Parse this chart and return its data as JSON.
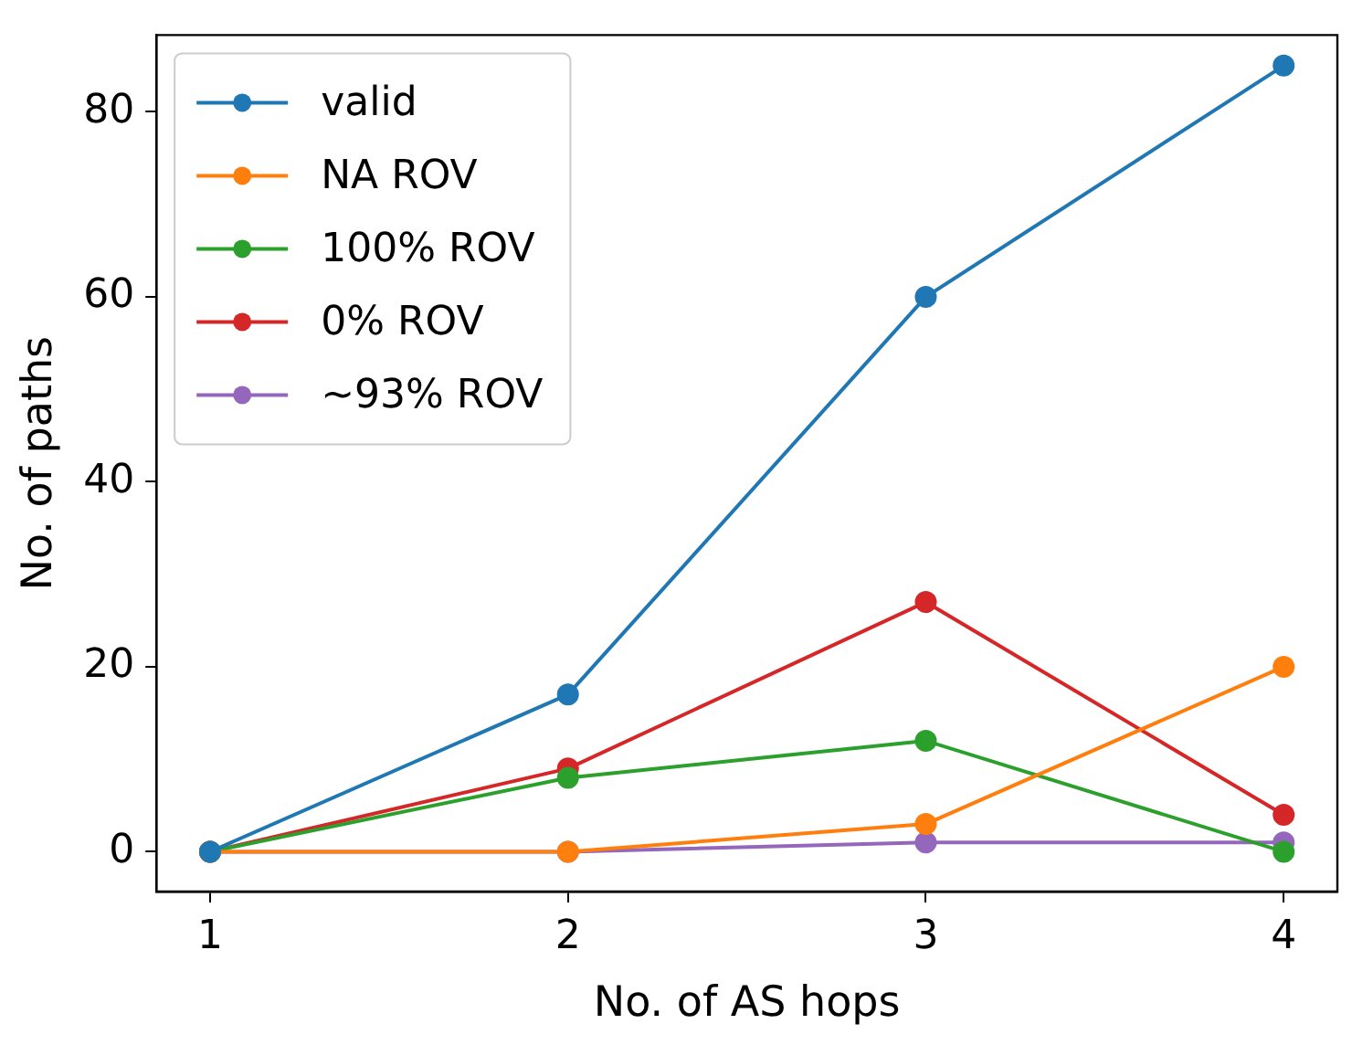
{
  "chart_data": {
    "type": "line",
    "xlabel": "No. of AS hops",
    "ylabel": "No. of paths",
    "x": [
      1,
      2,
      3,
      4
    ],
    "xlim": [
      0.85,
      4.15
    ],
    "xticks": [
      1,
      2,
      3,
      4
    ],
    "ylim": [
      -4.3,
      88.3
    ],
    "yticks": [
      0,
      20,
      40,
      60,
      80
    ],
    "series": [
      {
        "name": "valid",
        "color": "#1f77b4",
        "values": [
          0,
          17,
          60,
          85
        ]
      },
      {
        "name": "NA ROV",
        "color": "#ff7f0e",
        "values": [
          0,
          0,
          3,
          20
        ]
      },
      {
        "name": "100% ROV",
        "color": "#2ca02c",
        "values": [
          0,
          8,
          12,
          0
        ]
      },
      {
        "name": "0% ROV",
        "color": "#d62728",
        "values": [
          0,
          9,
          27,
          4
        ]
      },
      {
        "name": "~93% ROV",
        "color": "#9467bd",
        "values": [
          0,
          0,
          1,
          1
        ]
      }
    ],
    "marker": "circle",
    "line_style": "solid",
    "grid": false,
    "legend": "top left"
  }
}
